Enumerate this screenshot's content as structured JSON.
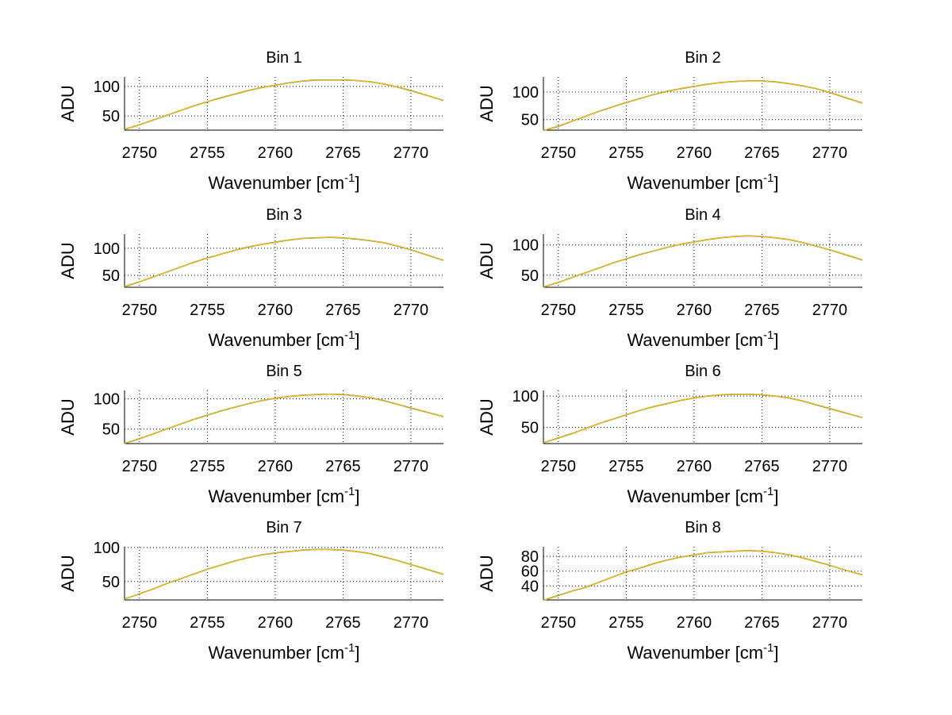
{
  "chart_data": [
    {
      "type": "line",
      "title": "Bin 1",
      "xlabel": "Wavenumber [cm",
      "xlabel_sup": "-1",
      "xlabel_end": "]",
      "ylabel": "ADU",
      "xlim": [
        2748.9,
        2772.4
      ],
      "ylim": [
        26,
        116
      ],
      "xticks": [
        2750,
        2755,
        2760,
        2765,
        2770
      ],
      "yticks": [
        50,
        100
      ],
      "grid": true,
      "x": [
        2749,
        2750,
        2751,
        2752,
        2753,
        2754,
        2755,
        2756,
        2757,
        2758,
        2759,
        2760,
        2761,
        2762,
        2763,
        2764,
        2765,
        2766,
        2767,
        2768,
        2769,
        2770,
        2771,
        2772
      ],
      "values": [
        28,
        35,
        43,
        51,
        59,
        67,
        74,
        81,
        87,
        93,
        98,
        102,
        106,
        109,
        111,
        111,
        111,
        110,
        108,
        104,
        99,
        93,
        86,
        79
      ]
    },
    {
      "type": "line",
      "title": "Bin 2",
      "xlabel": "Wavenumber [cm",
      "xlabel_sup": "-1",
      "xlabel_end": "]",
      "ylabel": "ADU",
      "xlim": [
        2748.9,
        2772.4
      ],
      "ylim": [
        31,
        127
      ],
      "xticks": [
        2750,
        2755,
        2760,
        2765,
        2770
      ],
      "yticks": [
        50,
        100
      ],
      "grid": true,
      "x": [
        2749,
        2750,
        2751,
        2752,
        2753,
        2754,
        2755,
        2756,
        2757,
        2758,
        2759,
        2760,
        2761,
        2762,
        2763,
        2764,
        2765,
        2766,
        2767,
        2768,
        2769,
        2770,
        2771,
        2772
      ],
      "values": [
        31,
        38,
        47,
        56,
        65,
        73,
        81,
        88,
        95,
        101,
        106,
        110,
        114,
        117,
        119,
        120,
        120,
        118,
        115,
        111,
        106,
        99,
        91,
        83
      ]
    },
    {
      "type": "line",
      "title": "Bin 3",
      "xlabel": "Wavenumber [cm",
      "xlabel_sup": "-1",
      "xlabel_end": "]",
      "ylabel": "ADU",
      "xlim": [
        2748.9,
        2772.4
      ],
      "ylim": [
        28,
        126
      ],
      "xticks": [
        2750,
        2755,
        2760,
        2765,
        2770
      ],
      "yticks": [
        50,
        100
      ],
      "grid": true,
      "x": [
        2749,
        2750,
        2751,
        2752,
        2753,
        2754,
        2755,
        2756,
        2757,
        2758,
        2759,
        2760,
        2761,
        2762,
        2763,
        2764,
        2765,
        2766,
        2767,
        2768,
        2769,
        2770,
        2771,
        2772
      ],
      "values": [
        30,
        38,
        47,
        56,
        65,
        74,
        82,
        89,
        96,
        102,
        107,
        111,
        115,
        118,
        119,
        120,
        119,
        117,
        114,
        110,
        104,
        97,
        89,
        81
      ]
    },
    {
      "type": "line",
      "title": "Bin 4",
      "xlabel": "Wavenumber [cm",
      "xlabel_sup": "-1",
      "xlabel_end": "]",
      "ylabel": "ADU",
      "xlim": [
        2748.9,
        2772.4
      ],
      "ylim": [
        30,
        118
      ],
      "xticks": [
        2750,
        2755,
        2760,
        2765,
        2770
      ],
      "yticks": [
        50,
        100
      ],
      "grid": true,
      "x": [
        2749,
        2750,
        2751,
        2752,
        2753,
        2754,
        2755,
        2756,
        2757,
        2758,
        2759,
        2760,
        2761,
        2762,
        2763,
        2764,
        2765,
        2766,
        2767,
        2768,
        2769,
        2770,
        2771,
        2772
      ],
      "values": [
        31,
        38,
        46,
        54,
        62,
        70,
        77,
        84,
        90,
        96,
        101,
        105,
        109,
        112,
        114,
        115,
        114,
        112,
        109,
        104,
        98,
        92,
        85,
        78
      ]
    },
    {
      "type": "line",
      "title": "Bin 5",
      "xlabel": "Wavenumber [cm",
      "xlabel_sup": "-1",
      "xlabel_end": "]",
      "ylabel": "ADU",
      "xlim": [
        2748.9,
        2772.4
      ],
      "ylim": [
        26,
        114
      ],
      "xticks": [
        2750,
        2755,
        2760,
        2765,
        2770
      ],
      "yticks": [
        50,
        100
      ],
      "grid": true,
      "x": [
        2749,
        2750,
        2751,
        2752,
        2753,
        2754,
        2755,
        2756,
        2757,
        2758,
        2759,
        2760,
        2761,
        2762,
        2763,
        2764,
        2765,
        2766,
        2767,
        2768,
        2769,
        2770,
        2771,
        2772
      ],
      "values": [
        27,
        34,
        42,
        50,
        58,
        66,
        73,
        80,
        86,
        92,
        97,
        101,
        104,
        106,
        107,
        108,
        107,
        105,
        102,
        97,
        91,
        85,
        79,
        73
      ]
    },
    {
      "type": "line",
      "title": "Bin 6",
      "xlabel": "Wavenumber [cm",
      "xlabel_sup": "-1",
      "xlabel_end": "]",
      "ylabel": "ADU",
      "xlim": [
        2748.9,
        2772.4
      ],
      "ylim": [
        24,
        109
      ],
      "xticks": [
        2750,
        2755,
        2760,
        2765,
        2770
      ],
      "yticks": [
        50,
        100
      ],
      "grid": true,
      "x": [
        2749,
        2750,
        2751,
        2752,
        2753,
        2754,
        2755,
        2756,
        2757,
        2758,
        2759,
        2760,
        2761,
        2762,
        2763,
        2764,
        2765,
        2766,
        2767,
        2768,
        2769,
        2770,
        2771,
        2772
      ],
      "values": [
        26,
        33,
        40,
        48,
        56,
        63,
        70,
        77,
        83,
        88,
        93,
        97,
        100,
        102,
        103,
        103,
        102,
        100,
        97,
        92,
        86,
        80,
        74,
        68
      ]
    },
    {
      "type": "line",
      "title": "Bin 7",
      "xlabel": "Wavenumber [cm",
      "xlabel_sup": "-1",
      "xlabel_end": "]",
      "ylabel": "ADU",
      "xlim": [
        2748.9,
        2772.4
      ],
      "ylim": [
        23,
        101
      ],
      "xticks": [
        2750,
        2755,
        2760,
        2765,
        2770
      ],
      "yticks": [
        50,
        100
      ],
      "grid": true,
      "x": [
        2749,
        2750,
        2751,
        2752,
        2753,
        2754,
        2755,
        2756,
        2757,
        2758,
        2759,
        2760,
        2761,
        2762,
        2763,
        2764,
        2765,
        2766,
        2767,
        2768,
        2769,
        2770,
        2771,
        2772
      ],
      "values": [
        25,
        32,
        39,
        47,
        54,
        61,
        68,
        74,
        80,
        85,
        89,
        92,
        94,
        96,
        97,
        97,
        96,
        94,
        91,
        86,
        81,
        75,
        69,
        63
      ]
    },
    {
      "type": "line",
      "title": "Bin 8",
      "xlabel": "Wavenumber [cm",
      "xlabel_sup": "-1",
      "xlabel_end": "]",
      "ylabel": "ADU",
      "xlim": [
        2748.9,
        2772.4
      ],
      "ylim": [
        21,
        93
      ],
      "xticks": [
        2750,
        2755,
        2760,
        2765,
        2770
      ],
      "yticks": [
        40,
        60,
        80
      ],
      "grid": true,
      "x": [
        2749,
        2750,
        2751,
        2752,
        2753,
        2754,
        2755,
        2756,
        2757,
        2758,
        2759,
        2760,
        2761,
        2762,
        2763,
        2764,
        2765,
        2766,
        2767,
        2768,
        2769,
        2770,
        2771,
        2772
      ],
      "values": [
        21,
        27,
        33,
        38,
        45,
        52,
        59,
        64,
        70,
        75,
        79,
        82,
        85,
        86,
        87,
        88,
        87,
        85,
        82,
        78,
        73,
        68,
        62,
        57
      ]
    }
  ],
  "colors": {
    "line": "#f0c000",
    "under": "#404040",
    "grid": "#000000"
  }
}
